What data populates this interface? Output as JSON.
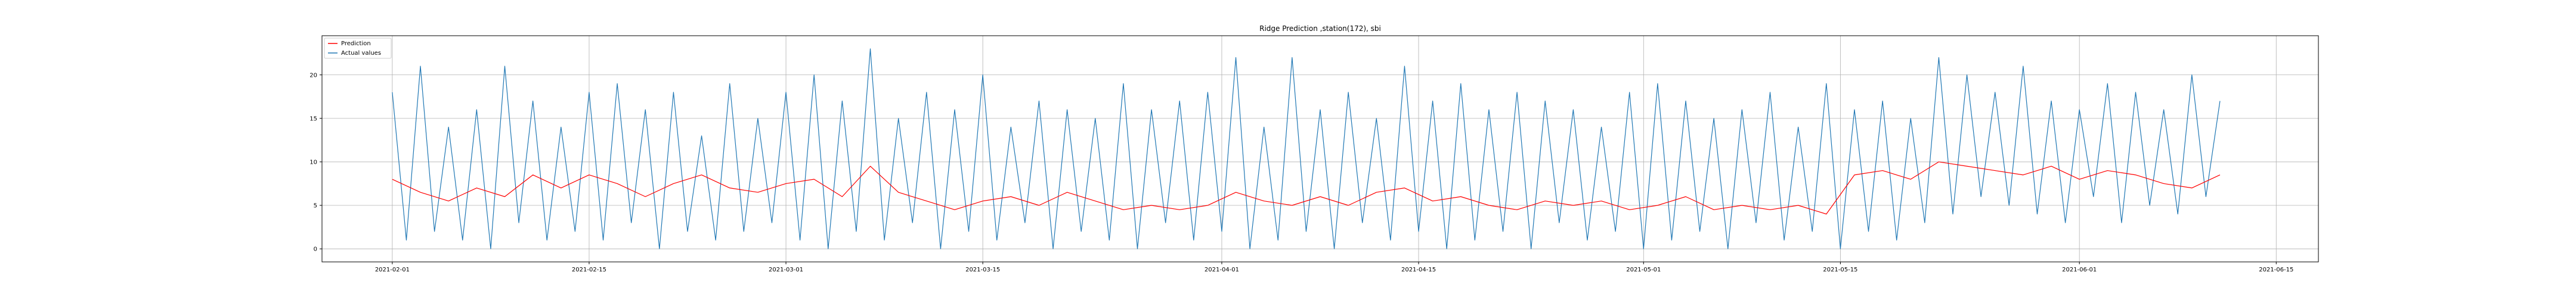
{
  "chart_data": {
    "type": "line",
    "title": "Ridge Prediction ,station(172), sbi",
    "xlabel": "",
    "ylabel": "",
    "x_range": [
      "2021-01-27",
      "2021-06-18"
    ],
    "ylim": [
      -1.5,
      24.5
    ],
    "x_ticks": [
      "2021-02-01",
      "2021-02-15",
      "2021-03-01",
      "2021-03-15",
      "2021-04-01",
      "2021-04-15",
      "2021-05-01",
      "2021-05-15",
      "2021-06-01",
      "2021-06-15"
    ],
    "y_ticks": [
      0,
      5,
      10,
      15,
      20
    ],
    "grid": true,
    "legend_position": "top-left",
    "series": [
      {
        "name": "Prediction",
        "color": "#ff0000",
        "x": [
          "2021-02-01",
          "2021-02-03",
          "2021-02-05",
          "2021-02-07",
          "2021-02-09",
          "2021-02-11",
          "2021-02-13",
          "2021-02-15",
          "2021-02-17",
          "2021-02-19",
          "2021-02-21",
          "2021-02-23",
          "2021-02-25",
          "2021-02-27",
          "2021-03-01",
          "2021-03-03",
          "2021-03-05",
          "2021-03-07",
          "2021-03-09",
          "2021-03-11",
          "2021-03-13",
          "2021-03-15",
          "2021-03-17",
          "2021-03-19",
          "2021-03-21",
          "2021-03-23",
          "2021-03-25",
          "2021-03-27",
          "2021-03-29",
          "2021-03-31",
          "2021-04-02",
          "2021-04-04",
          "2021-04-06",
          "2021-04-08",
          "2021-04-10",
          "2021-04-12",
          "2021-04-14",
          "2021-04-16",
          "2021-04-18",
          "2021-04-20",
          "2021-04-22",
          "2021-04-24",
          "2021-04-26",
          "2021-04-28",
          "2021-04-30",
          "2021-05-02",
          "2021-05-04",
          "2021-05-06",
          "2021-05-08",
          "2021-05-10",
          "2021-05-12",
          "2021-05-14",
          "2021-05-16",
          "2021-05-18",
          "2021-05-20",
          "2021-05-22",
          "2021-05-24",
          "2021-05-26",
          "2021-05-28",
          "2021-05-30",
          "2021-06-01",
          "2021-06-03",
          "2021-06-05",
          "2021-06-07",
          "2021-06-09",
          "2021-06-11"
        ],
        "y": [
          8.0,
          6.5,
          5.5,
          7.0,
          6.0,
          8.5,
          7.0,
          8.5,
          7.5,
          6.0,
          7.5,
          8.5,
          7.0,
          6.5,
          7.5,
          8.0,
          6.0,
          9.5,
          6.5,
          5.5,
          4.5,
          5.5,
          6.0,
          5.0,
          6.5,
          5.5,
          4.5,
          5.0,
          4.5,
          5.0,
          6.5,
          5.5,
          5.0,
          6.0,
          5.0,
          6.5,
          7.0,
          5.5,
          6.0,
          5.0,
          4.5,
          5.5,
          5.0,
          5.5,
          4.5,
          5.0,
          6.0,
          4.5,
          5.0,
          4.5,
          5.0,
          4.0,
          8.5,
          9.0,
          8.0,
          10.0,
          9.5,
          9.0,
          8.5,
          9.5,
          8.0,
          9.0,
          8.5,
          7.5,
          7.0,
          8.5
        ]
      },
      {
        "name": "Actual values",
        "color": "#1f77b4",
        "x": [
          "2021-02-01",
          "2021-02-02",
          "2021-02-03",
          "2021-02-04",
          "2021-02-05",
          "2021-02-06",
          "2021-02-07",
          "2021-02-08",
          "2021-02-09",
          "2021-02-10",
          "2021-02-11",
          "2021-02-12",
          "2021-02-13",
          "2021-02-14",
          "2021-02-15",
          "2021-02-16",
          "2021-02-17",
          "2021-02-18",
          "2021-02-19",
          "2021-02-20",
          "2021-02-21",
          "2021-02-22",
          "2021-02-23",
          "2021-02-24",
          "2021-02-25",
          "2021-02-26",
          "2021-02-27",
          "2021-02-28",
          "2021-03-01",
          "2021-03-02",
          "2021-03-03",
          "2021-03-04",
          "2021-03-05",
          "2021-03-06",
          "2021-03-07",
          "2021-03-08",
          "2021-03-09",
          "2021-03-10",
          "2021-03-11",
          "2021-03-12",
          "2021-03-13",
          "2021-03-14",
          "2021-03-15",
          "2021-03-16",
          "2021-03-17",
          "2021-03-18",
          "2021-03-19",
          "2021-03-20",
          "2021-03-21",
          "2021-03-22",
          "2021-03-23",
          "2021-03-24",
          "2021-03-25",
          "2021-03-26",
          "2021-03-27",
          "2021-03-28",
          "2021-03-29",
          "2021-03-30",
          "2021-03-31",
          "2021-04-01",
          "2021-04-02",
          "2021-04-03",
          "2021-04-04",
          "2021-04-05",
          "2021-04-06",
          "2021-04-07",
          "2021-04-08",
          "2021-04-09",
          "2021-04-10",
          "2021-04-11",
          "2021-04-12",
          "2021-04-13",
          "2021-04-14",
          "2021-04-15",
          "2021-04-16",
          "2021-04-17",
          "2021-04-18",
          "2021-04-19",
          "2021-04-20",
          "2021-04-21",
          "2021-04-22",
          "2021-04-23",
          "2021-04-24",
          "2021-04-25",
          "2021-04-26",
          "2021-04-27",
          "2021-04-28",
          "2021-04-29",
          "2021-04-30",
          "2021-05-01",
          "2021-05-02",
          "2021-05-03",
          "2021-05-04",
          "2021-05-05",
          "2021-05-06",
          "2021-05-07",
          "2021-05-08",
          "2021-05-09",
          "2021-05-10",
          "2021-05-11",
          "2021-05-12",
          "2021-05-13",
          "2021-05-14",
          "2021-05-15",
          "2021-05-16",
          "2021-05-17",
          "2021-05-18",
          "2021-05-19",
          "2021-05-20",
          "2021-05-21",
          "2021-05-22",
          "2021-05-23",
          "2021-05-24",
          "2021-05-25",
          "2021-05-26",
          "2021-05-27",
          "2021-05-28",
          "2021-05-29",
          "2021-05-30",
          "2021-05-31",
          "2021-06-01",
          "2021-06-02",
          "2021-06-03",
          "2021-06-04",
          "2021-06-05",
          "2021-06-06",
          "2021-06-07",
          "2021-06-08",
          "2021-06-09",
          "2021-06-10",
          "2021-06-11"
        ],
        "y": [
          18,
          1,
          21,
          2,
          14,
          1,
          16,
          0,
          21,
          3,
          17,
          1,
          14,
          2,
          18,
          1,
          19,
          3,
          16,
          0,
          18,
          2,
          13,
          1,
          19,
          2,
          15,
          3,
          18,
          1,
          20,
          0,
          17,
          2,
          23,
          1,
          15,
          3,
          18,
          0,
          16,
          2,
          20,
          1,
          14,
          3,
          17,
          0,
          16,
          2,
          15,
          1,
          19,
          0,
          16,
          3,
          17,
          1,
          18,
          2,
          22,
          0,
          14,
          1,
          22,
          2,
          16,
          0,
          18,
          3,
          15,
          1,
          21,
          2,
          17,
          0,
          19,
          1,
          16,
          2,
          18,
          0,
          17,
          3,
          16,
          1,
          14,
          2,
          18,
          0,
          19,
          1,
          17,
          2,
          15,
          0,
          16,
          3,
          18,
          1,
          14,
          2,
          19,
          0,
          16,
          2,
          17,
          1,
          15,
          3,
          22,
          4,
          20,
          6,
          18,
          5,
          21,
          4,
          17,
          3,
          16,
          6,
          19,
          3,
          18,
          5,
          16,
          4,
          20,
          6,
          17
        ]
      }
    ]
  }
}
